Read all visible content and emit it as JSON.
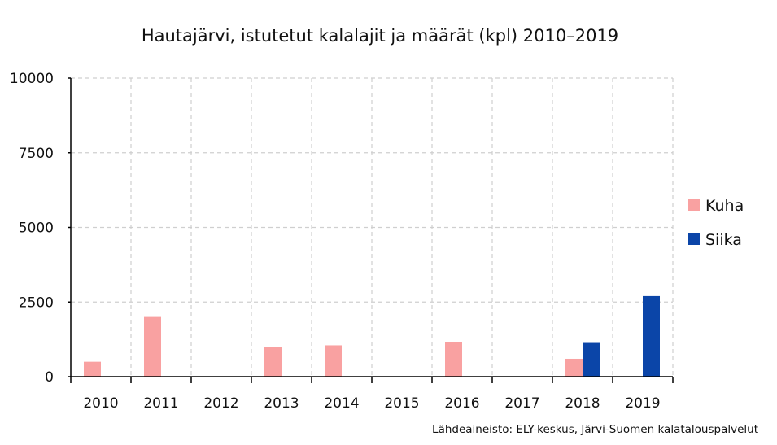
{
  "chart_data": {
    "type": "bar",
    "title": "Hautajärvi, istutetut kalalajit ja määrät (kpl) 2010–2019",
    "source": "Lähdeaineisto: ELY-keskus, Järvi-Suomen kalatalouspalvelut",
    "categories": [
      "2010",
      "2011",
      "2012",
      "2013",
      "2014",
      "2015",
      "2016",
      "2017",
      "2018",
      "2019"
    ],
    "series": [
      {
        "name": "Kuha",
        "color": "#f9a1a1",
        "values": [
          500,
          2000,
          0,
          1000,
          1050,
          0,
          1150,
          0,
          600,
          0
        ]
      },
      {
        "name": "Siika",
        "color": "#0b45a8",
        "values": [
          0,
          0,
          0,
          0,
          0,
          0,
          0,
          0,
          1130,
          2700
        ]
      }
    ],
    "ylim": [
      0,
      10000
    ],
    "yticks": [
      "0",
      "2500",
      "5000",
      "7500",
      "10000"
    ],
    "grid": true,
    "legend_position": "right"
  }
}
